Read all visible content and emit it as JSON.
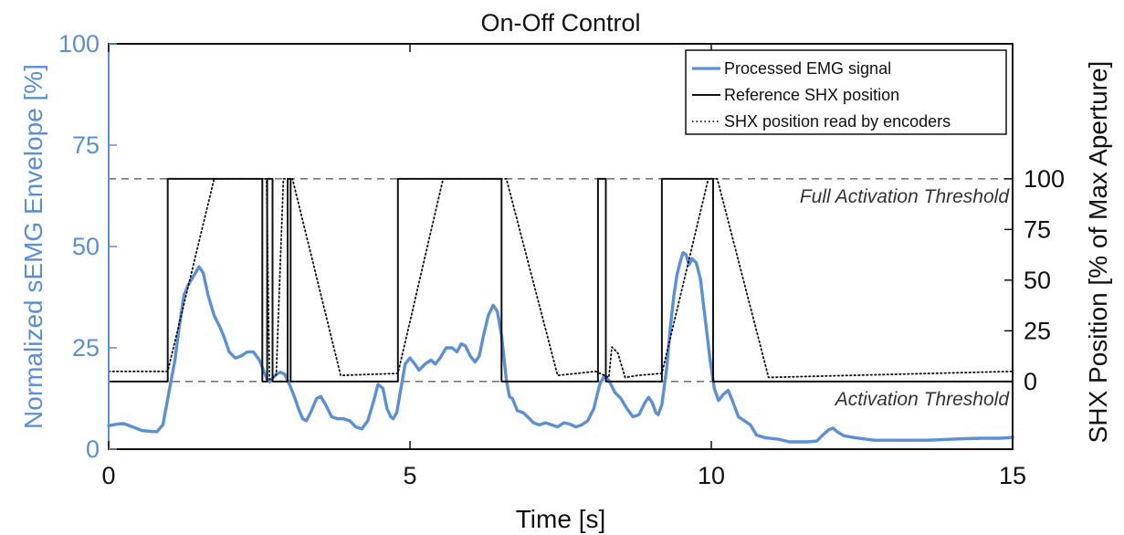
{
  "chart_data": {
    "type": "line",
    "title": "On-Off Control",
    "xlabel": "Time [s]",
    "ylabel_left": "Normalized sEMG Envelope [%]",
    "ylabel_right": "SHX Position [% of Max Aperture]",
    "xlim": [
      0,
      15
    ],
    "ylim_left": [
      0,
      100
    ],
    "right_axis_range": [
      0,
      100
    ],
    "right_axis_maps_left": [
      16.7,
      66.7
    ],
    "x_ticks": [
      "0",
      "5",
      "10",
      "15"
    ],
    "x_tick_values": [
      0,
      5,
      10,
      15
    ],
    "left_ticks": [
      "0",
      "25",
      "50",
      "75",
      "100"
    ],
    "left_tick_values": [
      0,
      25,
      50,
      75,
      100
    ],
    "right_ticks": [
      "0",
      "25",
      "50",
      "75",
      "100"
    ],
    "right_tick_values": [
      0,
      25,
      50,
      75,
      100
    ],
    "legend_position": "top-right",
    "thresholds": [
      {
        "name": "Full Activation Threshold",
        "left_value": 66.7
      },
      {
        "name": "Activation Threshold",
        "left_value": 16.7
      }
    ],
    "series": [
      {
        "name": "Processed EMG signal",
        "axis": "left",
        "color": "#5b8fd8",
        "style": "solid",
        "points": [
          [
            0,
            5.8
          ],
          [
            0.15,
            6.2
          ],
          [
            0.25,
            6.3
          ],
          [
            0.4,
            5.5
          ],
          [
            0.55,
            4.6
          ],
          [
            0.7,
            4.4
          ],
          [
            0.8,
            4.3
          ],
          [
            0.9,
            6
          ],
          [
            1.0,
            14
          ],
          [
            1.1,
            22
          ],
          [
            1.17,
            30
          ],
          [
            1.25,
            38
          ],
          [
            1.32,
            40.5
          ],
          [
            1.4,
            42.5
          ],
          [
            1.5,
            45
          ],
          [
            1.57,
            43.5
          ],
          [
            1.65,
            38
          ],
          [
            1.75,
            33
          ],
          [
            1.85,
            30
          ],
          [
            1.92,
            27.5
          ],
          [
            2.0,
            24
          ],
          [
            2.1,
            22.5
          ],
          [
            2.2,
            23
          ],
          [
            2.3,
            24
          ],
          [
            2.4,
            24
          ],
          [
            2.5,
            22
          ],
          [
            2.58,
            19
          ],
          [
            2.63,
            17.2
          ],
          [
            2.67,
            16.6
          ],
          [
            2.72,
            17.5
          ],
          [
            2.78,
            18.5
          ],
          [
            2.85,
            19
          ],
          [
            2.92,
            18.5
          ],
          [
            3.0,
            16
          ],
          [
            3.08,
            13
          ],
          [
            3.15,
            10
          ],
          [
            3.22,
            7.5
          ],
          [
            3.28,
            7
          ],
          [
            3.35,
            9
          ],
          [
            3.45,
            12.5
          ],
          [
            3.52,
            13
          ],
          [
            3.6,
            11
          ],
          [
            3.7,
            8
          ],
          [
            3.8,
            7.5
          ],
          [
            3.9,
            7.5
          ],
          [
            4.0,
            7
          ],
          [
            4.1,
            5.5
          ],
          [
            4.2,
            5
          ],
          [
            4.3,
            7
          ],
          [
            4.4,
            12
          ],
          [
            4.47,
            16
          ],
          [
            4.55,
            15
          ],
          [
            4.62,
            10
          ],
          [
            4.68,
            8
          ],
          [
            4.72,
            7.5
          ],
          [
            4.78,
            9
          ],
          [
            4.85,
            15
          ],
          [
            4.92,
            21
          ],
          [
            5.0,
            22.5
          ],
          [
            5.08,
            21
          ],
          [
            5.15,
            19.5
          ],
          [
            5.25,
            21
          ],
          [
            5.35,
            22
          ],
          [
            5.42,
            21
          ],
          [
            5.5,
            22.5
          ],
          [
            5.6,
            25
          ],
          [
            5.7,
            25
          ],
          [
            5.78,
            24
          ],
          [
            5.85,
            26
          ],
          [
            5.92,
            25.5
          ],
          [
            6.0,
            23
          ],
          [
            6.08,
            21.5
          ],
          [
            6.15,
            23
          ],
          [
            6.22,
            28
          ],
          [
            6.3,
            33
          ],
          [
            6.38,
            35.5
          ],
          [
            6.45,
            34
          ],
          [
            6.52,
            28
          ],
          [
            6.6,
            17
          ],
          [
            6.65,
            13
          ],
          [
            6.7,
            12.5
          ],
          [
            6.78,
            9.5
          ],
          [
            6.88,
            9
          ],
          [
            6.95,
            8
          ],
          [
            7.05,
            6.5
          ],
          [
            7.15,
            6
          ],
          [
            7.25,
            6.5
          ],
          [
            7.35,
            6
          ],
          [
            7.45,
            5.5
          ],
          [
            7.55,
            6.5
          ],
          [
            7.65,
            6.2
          ],
          [
            7.75,
            5.5
          ],
          [
            7.85,
            6
          ],
          [
            7.95,
            7
          ],
          [
            8.05,
            10
          ],
          [
            8.15,
            16
          ],
          [
            8.22,
            18
          ],
          [
            8.3,
            17
          ],
          [
            8.4,
            14
          ],
          [
            8.5,
            12.5
          ],
          [
            8.6,
            10
          ],
          [
            8.7,
            8
          ],
          [
            8.8,
            8.5
          ],
          [
            8.9,
            11.5
          ],
          [
            8.96,
            12.8
          ],
          [
            9.02,
            11.5
          ],
          [
            9.08,
            9
          ],
          [
            9.12,
            8.5
          ],
          [
            9.18,
            11
          ],
          [
            9.26,
            20
          ],
          [
            9.32,
            30
          ],
          [
            9.38,
            38
          ],
          [
            9.43,
            43
          ],
          [
            9.48,
            46
          ],
          [
            9.53,
            48.5
          ],
          [
            9.58,
            48
          ],
          [
            9.63,
            45.5
          ],
          [
            9.68,
            47
          ],
          [
            9.75,
            46
          ],
          [
            9.82,
            42
          ],
          [
            9.9,
            32
          ],
          [
            9.98,
            22
          ],
          [
            10.05,
            15
          ],
          [
            10.12,
            12
          ],
          [
            10.2,
            13.5
          ],
          [
            10.28,
            14.5
          ],
          [
            10.35,
            12
          ],
          [
            10.45,
            8
          ],
          [
            10.55,
            7
          ],
          [
            10.65,
            6
          ],
          [
            10.75,
            3.5
          ],
          [
            10.9,
            2.8
          ],
          [
            11.1,
            2.5
          ],
          [
            11.3,
            1.8
          ],
          [
            11.6,
            1.8
          ],
          [
            11.75,
            2
          ],
          [
            11.85,
            3.5
          ],
          [
            11.95,
            4.8
          ],
          [
            12.02,
            5.2
          ],
          [
            12.1,
            4.2
          ],
          [
            12.2,
            3.3
          ],
          [
            12.4,
            2.8
          ],
          [
            12.7,
            2.2
          ],
          [
            13.0,
            2.2
          ],
          [
            13.3,
            2.2
          ],
          [
            13.6,
            2.2
          ],
          [
            13.9,
            2.4
          ],
          [
            14.2,
            2.6
          ],
          [
            14.5,
            2.7
          ],
          [
            14.8,
            2.7
          ],
          [
            15.0,
            2.9
          ]
        ]
      },
      {
        "name": "Reference SHX position",
        "axis": "right",
        "color": "#111111",
        "style": "solid",
        "points": [
          [
            0,
            0
          ],
          [
            0.98,
            0
          ],
          [
            0.98,
            100
          ],
          [
            2.55,
            100
          ],
          [
            2.55,
            0
          ],
          [
            2.63,
            0
          ],
          [
            2.63,
            100
          ],
          [
            2.72,
            100
          ],
          [
            2.72,
            0
          ],
          [
            2.97,
            0
          ],
          [
            2.97,
            100
          ],
          [
            3.02,
            100
          ],
          [
            3.02,
            0
          ],
          [
            4.8,
            0
          ],
          [
            4.8,
            100
          ],
          [
            6.52,
            100
          ],
          [
            6.52,
            0
          ],
          [
            8.12,
            0
          ],
          [
            8.12,
            100
          ],
          [
            8.25,
            100
          ],
          [
            8.25,
            0
          ],
          [
            9.18,
            0
          ],
          [
            9.18,
            100
          ],
          [
            10.03,
            100
          ],
          [
            10.03,
            0
          ],
          [
            15,
            0
          ]
        ]
      },
      {
        "name": "SHX position read by encoders",
        "axis": "right",
        "color": "#111111",
        "style": "dotted",
        "points": [
          [
            0,
            5
          ],
          [
            0.98,
            5
          ],
          [
            1.75,
            100
          ],
          [
            2.62,
            100
          ],
          [
            2.67,
            1
          ],
          [
            2.78,
            3
          ],
          [
            2.9,
            100
          ],
          [
            3.05,
            100
          ],
          [
            3.85,
            3
          ],
          [
            4.8,
            4
          ],
          [
            5.55,
            100
          ],
          [
            6.6,
            100
          ],
          [
            7.45,
            3
          ],
          [
            8.08,
            5
          ],
          [
            8.3,
            2
          ],
          [
            8.35,
            17
          ],
          [
            8.45,
            14
          ],
          [
            8.57,
            2
          ],
          [
            8.78,
            3
          ],
          [
            9.18,
            4
          ],
          [
            9.95,
            100
          ],
          [
            10.1,
            100
          ],
          [
            10.95,
            2
          ],
          [
            15,
            5
          ]
        ]
      }
    ]
  }
}
